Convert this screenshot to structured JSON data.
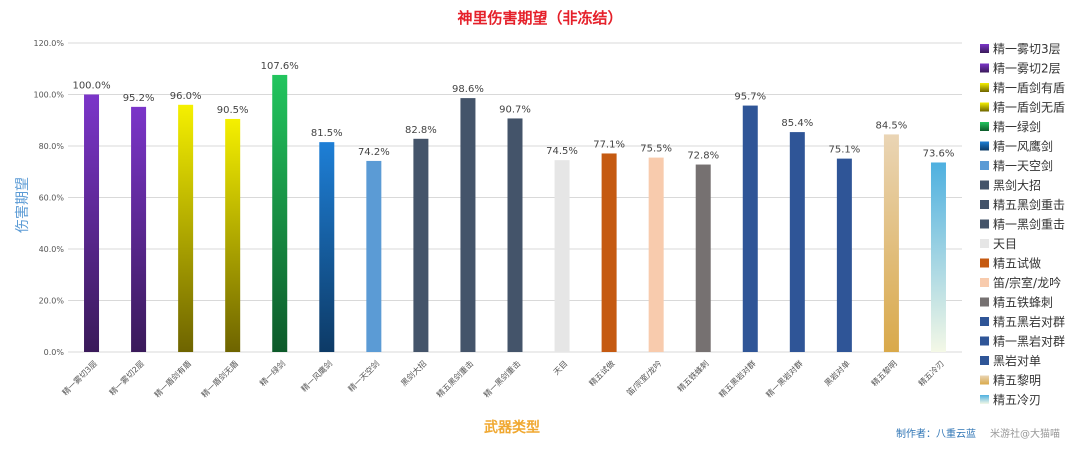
{
  "chart_data": {
    "type": "bar",
    "title": "神里伤害期望（非冻结）",
    "xlabel": "武器类型",
    "ylabel": "伤害期望",
    "ylim": [
      0,
      120
    ],
    "yticks": [
      "0.0%",
      "20.0%",
      "40.0%",
      "60.0%",
      "80.0%",
      "100.0%",
      "120.0%"
    ],
    "grid": true,
    "legend_position": "right",
    "categories": [
      "精一雾切3层",
      "精一雾切2层",
      "精一盾剑有盾",
      "精一盾剑无盾",
      "精一绿剑",
      "精一风鹰剑",
      "精一天空剑",
      "黑剑大招",
      "精五黑剑重击",
      "精一黑剑重击",
      "天目",
      "精五试做",
      "笛/宗室/龙吟",
      "精五铁蜂刺",
      "精五黑岩对群",
      "精一黑岩对群",
      "黑岩对单",
      "精五黎明",
      "精五冷刃"
    ],
    "legend_labels": [
      "精一雾切3层",
      "精一雾切2层",
      "精一盾剑有盾",
      "精一盾剑无盾",
      "精一绿剑",
      "精一风鹰剑",
      "精一天空剑",
      "黑剑大招",
      "精五黑剑重击",
      "精一黑剑重击",
      "天目",
      "精五试做",
      "笛/宗室/龙吟",
      "精五铁蜂刺",
      "精五黑岩对群",
      "精一黑岩对群",
      "黑岩对单",
      "精五黎明",
      "精五冷刃"
    ],
    "values": [
      100.0,
      95.2,
      96.0,
      90.5,
      107.6,
      81.5,
      74.2,
      82.8,
      98.6,
      90.7,
      74.5,
      77.1,
      75.5,
      72.8,
      95.7,
      85.4,
      75.1,
      84.5,
      73.6
    ],
    "value_labels": [
      "100.0%",
      "95.2%",
      "96.0%",
      "90.5%",
      "107.6%",
      "81.5%",
      "74.2%",
      "82.8%",
      "98.6%",
      "90.7%",
      "74.5%",
      "77.1%",
      "75.5%",
      "72.8%",
      "95.7%",
      "85.4%",
      "75.1%",
      "84.5%",
      "73.6%"
    ],
    "colors": [
      [
        "#7b35c9",
        "#3a1a5a"
      ],
      [
        "#7b35c9",
        "#3a1a5a"
      ],
      [
        "#f5f000",
        "#6e6400"
      ],
      [
        "#f5f000",
        "#6e6400"
      ],
      [
        "#22c55e",
        "#0d5a2a"
      ],
      [
        "#1e7fd6",
        "#0d3a66"
      ],
      [
        "#5b9bd5",
        "#5b9bd5"
      ],
      [
        "#44546a",
        "#44546a"
      ],
      [
        "#44546a",
        "#44546a"
      ],
      [
        "#44546a",
        "#44546a"
      ],
      [
        "#e6e6e6",
        "#e6e6e6"
      ],
      [
        "#c55a11",
        "#c55a11"
      ],
      [
        "#f8cbad",
        "#f8cbad"
      ],
      [
        "#767171",
        "#767171"
      ],
      [
        "#2f5597",
        "#2f5597"
      ],
      [
        "#2f5597",
        "#2f5597"
      ],
      [
        "#2f5597",
        "#2f5597"
      ],
      [
        "#ead5b5",
        "#d9a94a"
      ],
      [
        "#4eb0e0",
        "#f4f8e6"
      ]
    ]
  },
  "credits": {
    "author": "制作者：八重云蓝",
    "watermark": "米游社@大猫喵"
  }
}
